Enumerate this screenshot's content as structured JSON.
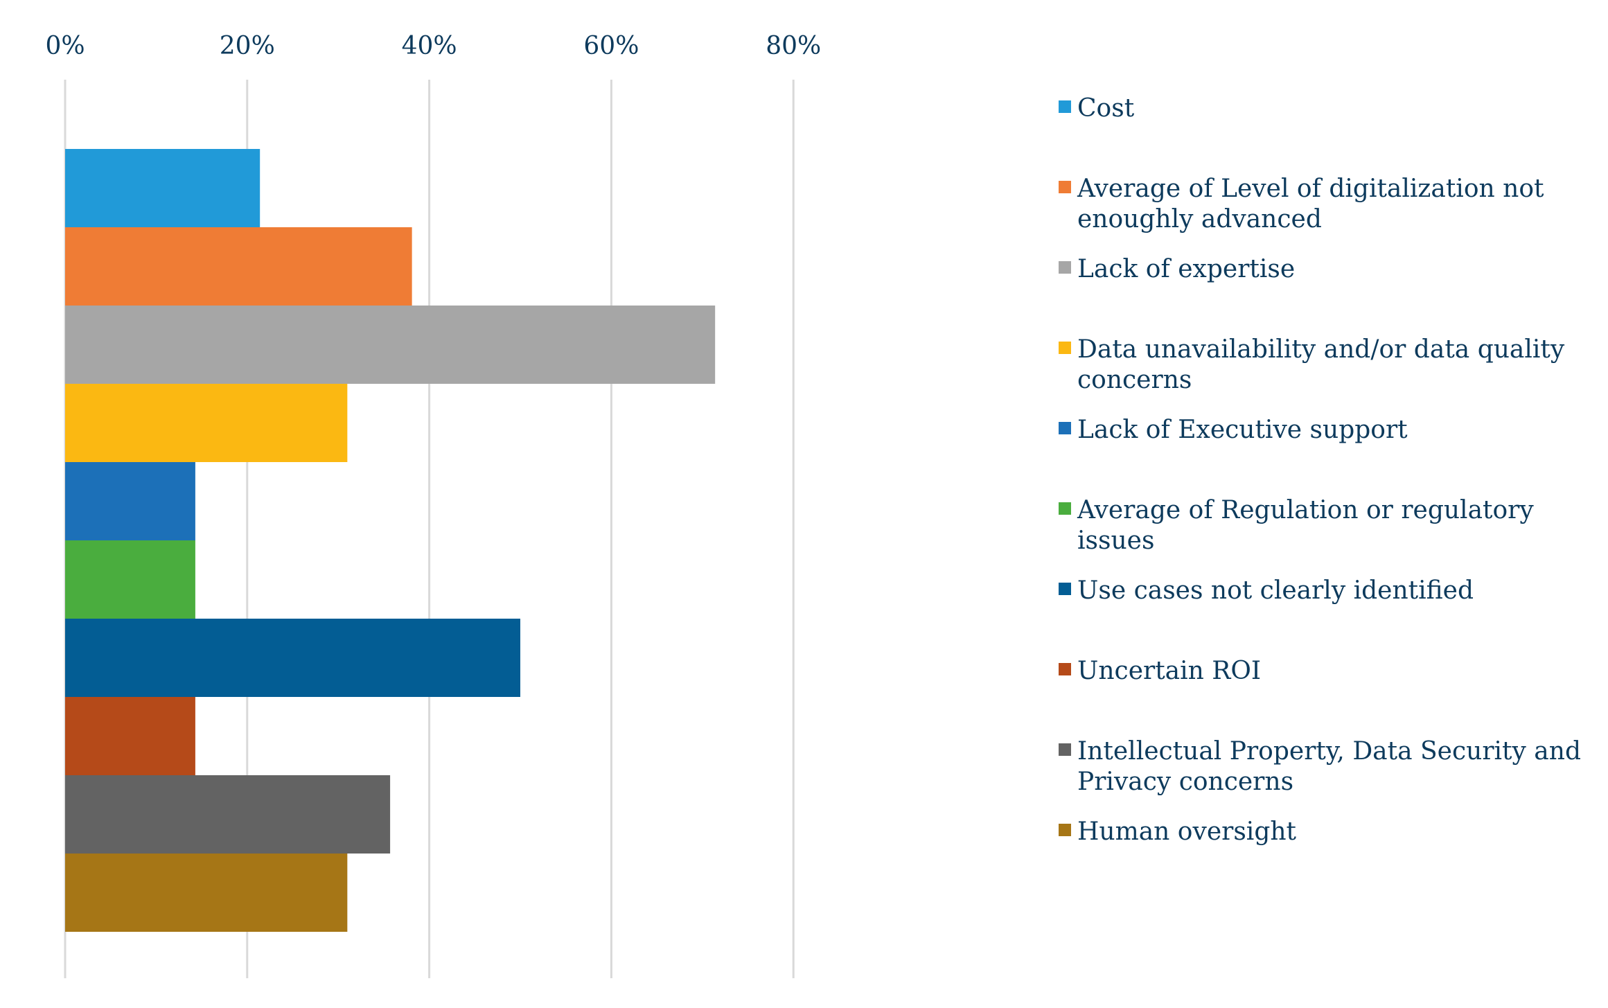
{
  "chart_data": {
    "type": "bar",
    "orientation": "horizontal",
    "x_ticks": [
      "0%",
      "20%",
      "40%",
      "60%",
      "80%"
    ],
    "x_axis_position": "top",
    "xlim": [
      0,
      100
    ],
    "grid": true,
    "legend_position": "right",
    "series": [
      {
        "name": "Cost",
        "value": 21.4,
        "color": "#219ad8"
      },
      {
        "name": "Average of Level of digitalization not enoughly advanced",
        "value": 38.1,
        "color": "#ef7c35"
      },
      {
        "name": "Lack of expertise",
        "value": 71.4,
        "color": "#a6a6a6"
      },
      {
        "name": "Data unavailability and/or data quality concerns",
        "value": 31,
        "color": "#fbb812"
      },
      {
        "name": "Lack of Executive support",
        "value": 14.3,
        "color": "#1c70b8"
      },
      {
        "name": "Average of Regulation or regulatory issues",
        "value": 14.3,
        "color": "#4aad3e"
      },
      {
        "name": "Use cases not clearly identified",
        "value": 50,
        "color": "#035d94"
      },
      {
        "name": "Uncertain ROI",
        "value": 14.3,
        "color": "#b54a19"
      },
      {
        "name": "Intellectual Property, Data Security and Privacy concerns",
        "value": 35.7,
        "color": "#636363"
      },
      {
        "name": "Human oversight",
        "value": 31,
        "color": "#a67616"
      }
    ],
    "text_color": "#0d3a5c",
    "grid_color": "#d9d9d9"
  }
}
